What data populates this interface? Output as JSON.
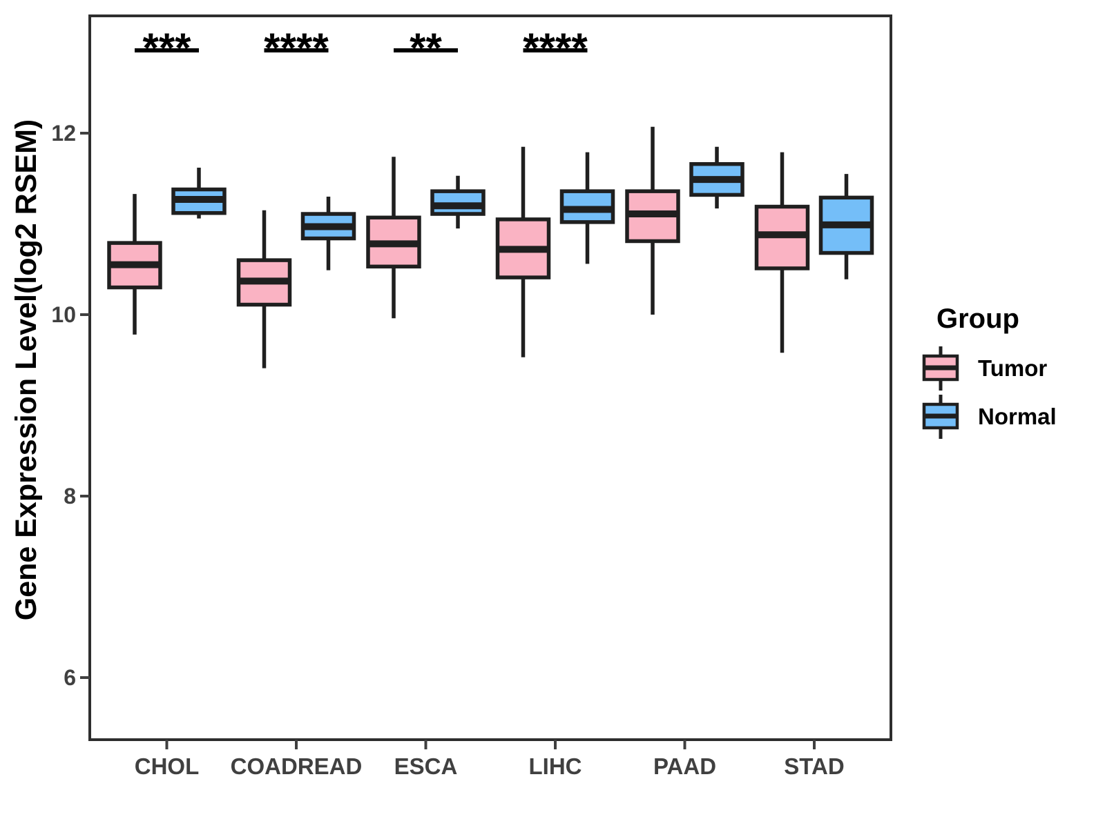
{
  "chart_data": {
    "type": "boxplot",
    "title": "",
    "xlabel": "",
    "ylabel": "Gene Expression Level(log2 RSEM)",
    "categories": [
      "CHOL",
      "COADREAD",
      "ESCA",
      "LIHC",
      "PAAD",
      "STAD"
    ],
    "yticks": [
      12,
      10,
      8,
      6
    ],
    "ylim": [
      5.3,
      13.3
    ],
    "grid": false,
    "legend": {
      "title": "Group",
      "position": "right"
    },
    "groups": [
      {
        "name": "Tumor",
        "color": "#FAB3C3"
      },
      {
        "name": "Normal",
        "color": "#74BEF8"
      }
    ],
    "series": [
      {
        "group": "Tumor",
        "boxes": [
          {
            "category": "CHOL",
            "low": 9.78,
            "q1": 10.3,
            "median": 10.55,
            "q3": 10.79,
            "high": 11.33
          },
          {
            "category": "COADREAD",
            "low": 9.41,
            "q1": 10.11,
            "median": 10.37,
            "q3": 10.6,
            "high": 11.15
          },
          {
            "category": "ESCA",
            "low": 9.96,
            "q1": 10.53,
            "median": 10.78,
            "q3": 11.07,
            "high": 11.74
          },
          {
            "category": "LIHC",
            "low": 9.53,
            "q1": 10.41,
            "median": 10.72,
            "q3": 11.05,
            "high": 11.85
          },
          {
            "category": "PAAD",
            "low": 10.0,
            "q1": 10.81,
            "median": 11.11,
            "q3": 11.36,
            "high": 12.07
          },
          {
            "category": "STAD",
            "low": 9.58,
            "q1": 10.51,
            "median": 10.88,
            "q3": 11.19,
            "high": 11.79
          }
        ]
      },
      {
        "group": "Normal",
        "boxes": [
          {
            "category": "CHOL",
            "low": 11.06,
            "q1": 11.12,
            "median": 11.27,
            "q3": 11.38,
            "high": 11.62
          },
          {
            "category": "COADREAD",
            "low": 10.49,
            "q1": 10.84,
            "median": 10.97,
            "q3": 11.11,
            "high": 11.3
          },
          {
            "category": "ESCA",
            "low": 10.95,
            "q1": 11.11,
            "median": 11.2,
            "q3": 11.36,
            "high": 11.53
          },
          {
            "category": "LIHC",
            "low": 10.56,
            "q1": 11.02,
            "median": 11.16,
            "q3": 11.36,
            "high": 11.79
          },
          {
            "category": "PAAD",
            "low": 11.17,
            "q1": 11.32,
            "median": 11.49,
            "q3": 11.66,
            "high": 11.85
          },
          {
            "category": "STAD",
            "low": 10.39,
            "q1": 10.68,
            "median": 10.99,
            "q3": 11.29,
            "high": 11.55
          }
        ]
      }
    ],
    "significance": [
      {
        "category": "CHOL",
        "label": "***"
      },
      {
        "category": "COADREAD",
        "label": "****"
      },
      {
        "category": "ESCA",
        "label": "**"
      },
      {
        "category": "LIHC",
        "label": "****"
      }
    ],
    "colors": {
      "box_border": "#1F1F1F",
      "whisker": "#1F1F1F",
      "median": "#1F1F1F",
      "panel_border": "#2E2E2E",
      "axis_text": "#404040",
      "sig_text": "#000000"
    }
  }
}
